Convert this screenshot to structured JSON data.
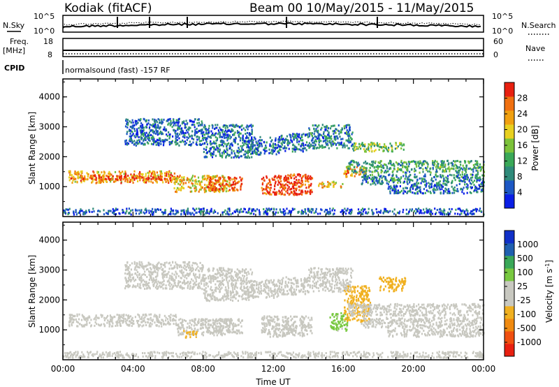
{
  "header": {
    "station": "Kodiak (fitACF)",
    "beam_range": "Beam 00  10/May/2015 - 11/May/2015"
  },
  "top_panels": {
    "nsky_label": "N.Sky",
    "nsearch_label": "N.Search",
    "nsky_ticks": [
      "10^5",
      "10^0"
    ],
    "nsearch_ticks": [
      "10^5",
      "10^0"
    ],
    "freq_label": "Freq.",
    "freq_unit": "[MHz]",
    "freq_ticks": [
      "18",
      "8"
    ],
    "nave_label": "Nave",
    "nave_ticks": [
      "60",
      "0"
    ],
    "cpid_label": "CPID",
    "cpid_text": "normalsound (fast) -157 RF"
  },
  "chart_data": [
    {
      "type": "heatmap",
      "panel": "power",
      "ylabel": "Slant Range [km]",
      "ylim": [
        0,
        4600
      ],
      "yticks": [
        "1000",
        "2000",
        "3000",
        "4000"
      ],
      "xlim_hours": [
        0,
        24
      ],
      "colorbar": {
        "label": "Power [dB]",
        "ticks": [
          "4",
          "8",
          "12",
          "16",
          "20",
          "24",
          "28"
        ],
        "range": [
          0,
          30
        ],
        "colors": [
          "#0a1ee6",
          "#1d58c4",
          "#2f8a7a",
          "#3aa858",
          "#7cc23a",
          "#e8d020",
          "#f0a010",
          "#f07010",
          "#e82010"
        ]
      },
      "bands": [
        {
          "x0": 0.3,
          "x1": 6.5,
          "y0": 1150,
          "y1": 1550,
          "v": 22
        },
        {
          "x0": 1.0,
          "x1": 6.5,
          "y0": 1250,
          "y1": 1400,
          "v": 27
        },
        {
          "x0": 6.3,
          "x1": 9.5,
          "y0": 850,
          "y1": 1400,
          "v": 20
        },
        {
          "x0": 8.2,
          "x1": 10.2,
          "y0": 900,
          "y1": 1350,
          "v": 26
        },
        {
          "x0": 11.3,
          "x1": 14.2,
          "y0": 750,
          "y1": 1450,
          "v": 28
        },
        {
          "x0": 14.5,
          "x1": 16.0,
          "y0": 1000,
          "y1": 1200,
          "v": 20
        },
        {
          "x0": 16.0,
          "x1": 17.3,
          "y0": 1350,
          "y1": 1700,
          "v": 21
        },
        {
          "x0": 16.2,
          "x1": 24.0,
          "y0": 1500,
          "y1": 1900,
          "v": 11
        },
        {
          "x0": 17.0,
          "x1": 24.0,
          "y0": 1100,
          "y1": 1450,
          "v": 8
        },
        {
          "x0": 18.5,
          "x1": 24.0,
          "y0": 800,
          "y1": 1100,
          "v": 6
        },
        {
          "x0": 3.5,
          "x1": 8.0,
          "y0": 2400,
          "y1": 3300,
          "v": 6
        },
        {
          "x0": 8.0,
          "x1": 10.8,
          "y0": 2000,
          "y1": 3100,
          "v": 7
        },
        {
          "x0": 10.5,
          "x1": 12.3,
          "y0": 2100,
          "y1": 2700,
          "v": 6
        },
        {
          "x0": 12.3,
          "x1": 14.0,
          "y0": 2200,
          "y1": 2800,
          "v": 6
        },
        {
          "x0": 14.0,
          "x1": 16.5,
          "y0": 2300,
          "y1": 3100,
          "v": 8
        },
        {
          "x0": 16.5,
          "x1": 19.5,
          "y0": 2200,
          "y1": 2500,
          "v": 13
        },
        {
          "x0": 0.0,
          "x1": 24.0,
          "y0": 100,
          "y1": 300,
          "v": 5
        }
      ]
    },
    {
      "type": "heatmap",
      "panel": "velocity",
      "ylabel": "Slant Range [km]",
      "ylim": [
        0,
        4600
      ],
      "yticks": [
        "1000",
        "2000",
        "3000",
        "4000"
      ],
      "xlim_hours": [
        0,
        24
      ],
      "xlabel": "Time UT",
      "xticks": [
        "00:00",
        "04:00",
        "08:00",
        "12:00",
        "16:00",
        "20:00",
        "00:00"
      ],
      "colorbar": {
        "label": "Velocity [m s^-1]",
        "ticks": [
          "1000",
          "500",
          "100",
          "25",
          "-25",
          "-100",
          "-500",
          "-1000"
        ],
        "range": [
          -1250,
          1250
        ],
        "colors": [
          "#e82010",
          "#f05010",
          "#f08a10",
          "#f0b020",
          "#c8c8c0",
          "#c8c8c0",
          "#78c840",
          "#3aa858",
          "#2060b0",
          "#1030c8"
        ]
      },
      "bands": [
        {
          "x0": 0.3,
          "x1": 6.5,
          "y0": 1150,
          "y1": 1550,
          "v": 0
        },
        {
          "x0": 6.5,
          "x1": 9.5,
          "y0": 850,
          "y1": 1400,
          "v": 120
        },
        {
          "x0": 6.8,
          "x1": 7.6,
          "y0": 750,
          "y1": 1000,
          "v": -300
        },
        {
          "x0": 8.2,
          "x1": 10.2,
          "y0": 900,
          "y1": 1400,
          "v": 80
        },
        {
          "x0": 11.3,
          "x1": 14.2,
          "y0": 800,
          "y1": 1500,
          "v": 130
        },
        {
          "x0": 12.5,
          "x1": 13.3,
          "y0": 900,
          "y1": 1300,
          "v": -150
        },
        {
          "x0": 15.2,
          "x1": 16.2,
          "y0": 1000,
          "y1": 1600,
          "v": 300
        },
        {
          "x0": 16.0,
          "x1": 17.5,
          "y0": 1300,
          "y1": 2500,
          "v": -350
        },
        {
          "x0": 16.2,
          "x1": 24.0,
          "y0": 1500,
          "y1": 1900,
          "v": 0
        },
        {
          "x0": 17.0,
          "x1": 24.0,
          "y0": 1100,
          "y1": 1450,
          "v": 0
        },
        {
          "x0": 18.5,
          "x1": 24.0,
          "y0": 800,
          "y1": 1100,
          "v": 0
        },
        {
          "x0": 3.5,
          "x1": 8.0,
          "y0": 2400,
          "y1": 3300,
          "v": 0
        },
        {
          "x0": 8.0,
          "x1": 10.8,
          "y0": 2000,
          "y1": 3100,
          "v": 0
        },
        {
          "x0": 10.5,
          "x1": 12.3,
          "y0": 2100,
          "y1": 2700,
          "v": 0
        },
        {
          "x0": 12.3,
          "x1": 14.0,
          "y0": 2200,
          "y1": 2800,
          "v": 0
        },
        {
          "x0": 14.0,
          "x1": 16.5,
          "y0": 2300,
          "y1": 3100,
          "v": 0
        },
        {
          "x0": 18.0,
          "x1": 19.5,
          "y0": 2300,
          "y1": 2800,
          "v": -400
        },
        {
          "x0": 0.0,
          "x1": 24.0,
          "y0": 100,
          "y1": 300,
          "v": 0
        }
      ]
    }
  ]
}
